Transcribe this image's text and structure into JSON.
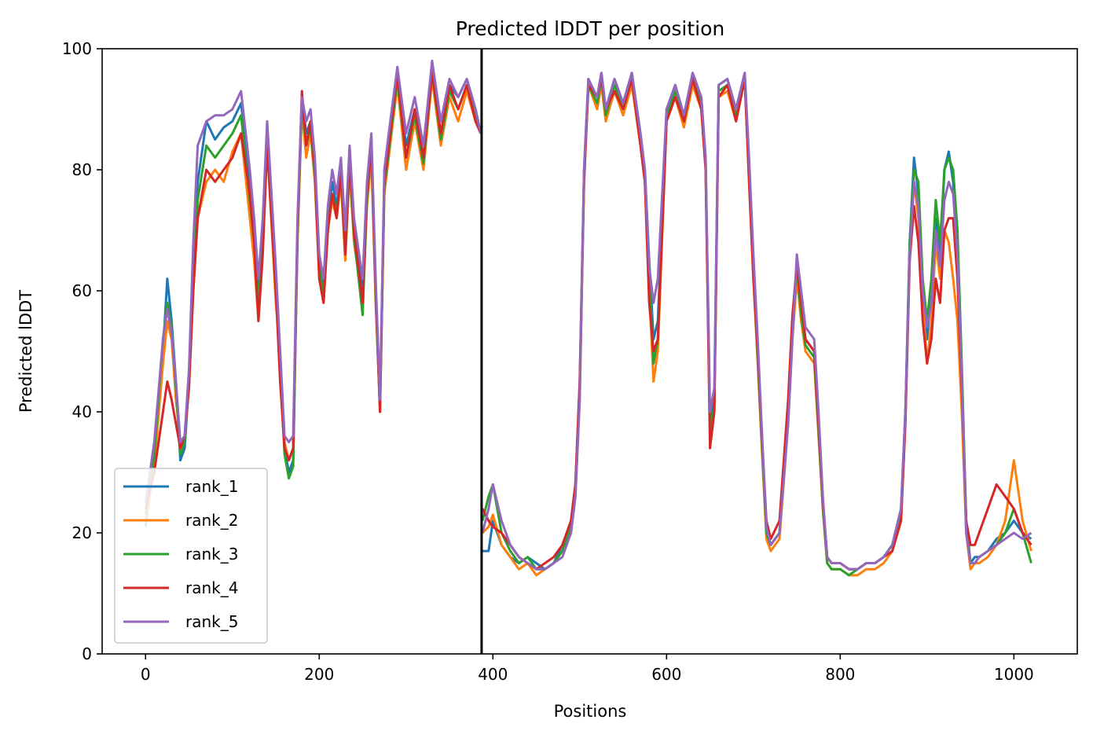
{
  "chart_data": {
    "type": "line",
    "title": "Predicted lDDT per position",
    "xlabel": "Positions",
    "ylabel": "Predicted lDDT",
    "xlim": [
      -50,
      1073
    ],
    "ylim": [
      0,
      100
    ],
    "xticks": [
      0,
      200,
      400,
      600,
      800,
      1000
    ],
    "yticks": [
      0,
      20,
      40,
      60,
      80,
      100
    ],
    "grid": false,
    "legend_position": "lower-left",
    "chain_boundary_x": 387,
    "colors": {
      "rank_1": "#1f77b4",
      "rank_2": "#ff7f0e",
      "rank_3": "#2ca02c",
      "rank_4": "#d62728",
      "rank_5": "#9467bd",
      "boundary": "#000000"
    },
    "x": [
      0,
      10,
      20,
      25,
      30,
      35,
      40,
      45,
      50,
      55,
      60,
      70,
      80,
      90,
      100,
      110,
      120,
      125,
      130,
      135,
      140,
      150,
      155,
      160,
      165,
      170,
      175,
      180,
      185,
      190,
      195,
      200,
      205,
      210,
      215,
      220,
      225,
      230,
      235,
      240,
      250,
      255,
      260,
      265,
      270,
      275,
      280,
      290,
      300,
      310,
      320,
      330,
      340,
      350,
      360,
      370,
      380,
      386,
      388,
      395,
      400,
      410,
      420,
      430,
      440,
      450,
      460,
      470,
      480,
      490,
      495,
      500,
      505,
      510,
      520,
      525,
      530,
      540,
      550,
      560,
      570,
      575,
      580,
      585,
      590,
      600,
      610,
      620,
      630,
      640,
      645,
      650,
      655,
      660,
      670,
      680,
      690,
      695,
      700,
      705,
      710,
      715,
      720,
      730,
      740,
      745,
      750,
      755,
      760,
      770,
      775,
      780,
      785,
      790,
      800,
      810,
      820,
      830,
      840,
      850,
      860,
      870,
      875,
      880,
      885,
      890,
      895,
      900,
      905,
      910,
      915,
      920,
      925,
      930,
      935,
      940,
      945,
      950,
      955,
      960,
      970,
      980,
      990,
      1000,
      1010,
      1020
    ],
    "series": [
      {
        "name": "rank_1",
        "values": [
          21,
          32,
          50,
          62,
          55,
          45,
          32,
          34,
          45,
          65,
          78,
          88,
          85,
          87,
          88,
          91,
          78,
          72,
          60,
          70,
          86,
          62,
          48,
          34,
          30,
          32,
          70,
          92,
          86,
          88,
          80,
          65,
          60,
          72,
          78,
          74,
          80,
          68,
          82,
          70,
          60,
          76,
          85,
          60,
          42,
          78,
          84,
          96,
          84,
          90,
          82,
          97,
          86,
          94,
          92,
          95,
          90,
          86,
          17,
          17,
          22,
          18,
          16,
          15,
          16,
          15,
          14,
          15,
          18,
          22,
          28,
          45,
          80,
          95,
          92,
          96,
          90,
          95,
          91,
          96,
          86,
          80,
          65,
          52,
          55,
          90,
          94,
          89,
          96,
          92,
          82,
          38,
          42,
          94,
          95,
          90,
          96,
          80,
          65,
          50,
          35,
          20,
          18,
          20,
          40,
          55,
          65,
          58,
          52,
          50,
          38,
          25,
          16,
          15,
          15,
          14,
          14,
          15,
          15,
          16,
          18,
          24,
          40,
          68,
          82,
          76,
          60,
          52,
          60,
          72,
          65,
          80,
          83,
          78,
          65,
          45,
          22,
          15,
          16,
          16,
          17,
          19,
          20,
          22,
          20,
          19
        ]
      },
      {
        "name": "rank_2",
        "values": [
          22,
          31,
          48,
          55,
          52,
          42,
          35,
          36,
          44,
          60,
          72,
          78,
          80,
          78,
          83,
          86,
          72,
          65,
          55,
          68,
          84,
          58,
          50,
          35,
          32,
          34,
          68,
          90,
          82,
          86,
          78,
          62,
          58,
          70,
          75,
          72,
          78,
          65,
          80,
          68,
          58,
          74,
          82,
          58,
          41,
          76,
          82,
          94,
          80,
          88,
          80,
          95,
          84,
          92,
          88,
          93,
          88,
          86,
          20,
          21,
          23,
          18,
          16,
          14,
          15,
          13,
          14,
          15,
          17,
          20,
          26,
          42,
          78,
          94,
          90,
          94,
          88,
          93,
          89,
          94,
          84,
          78,
          60,
          45,
          50,
          88,
          92,
          87,
          94,
          90,
          80,
          36,
          40,
          92,
          93,
          88,
          95,
          78,
          62,
          48,
          33,
          19,
          17,
          19,
          38,
          52,
          62,
          55,
          50,
          48,
          36,
          24,
          15,
          14,
          14,
          13,
          13,
          14,
          14,
          15,
          17,
          22,
          38,
          65,
          78,
          72,
          58,
          48,
          55,
          68,
          62,
          70,
          68,
          62,
          55,
          40,
          20,
          14,
          15,
          15,
          16,
          18,
          22,
          32,
          22,
          17
        ]
      },
      {
        "name": "rank_3",
        "values": [
          23,
          33,
          52,
          58,
          54,
          44,
          33,
          35,
          46,
          63,
          75,
          84,
          82,
          84,
          86,
          89,
          75,
          68,
          58,
          69,
          85,
          60,
          47,
          33,
          29,
          31,
          69,
          91,
          84,
          87,
          79,
          64,
          59,
          71,
          76,
          73,
          79,
          66,
          81,
          69,
          56,
          75,
          84,
          59,
          40,
          77,
          83,
          95,
          82,
          89,
          81,
          96,
          85,
          93,
          90,
          94,
          89,
          86,
          22,
          26,
          28,
          20,
          17,
          15,
          16,
          14,
          14,
          15,
          17,
          21,
          27,
          44,
          79,
          94,
          91,
          95,
          89,
          94,
          90,
          95,
          85,
          79,
          62,
          48,
          52,
          89,
          93,
          88,
          95,
          91,
          81,
          37,
          41,
          93,
          94,
          89,
          95,
          79,
          63,
          49,
          34,
          20,
          18,
          20,
          39,
          54,
          64,
          56,
          51,
          49,
          37,
          24,
          15,
          14,
          14,
          13,
          14,
          15,
          15,
          16,
          18,
          23,
          39,
          68,
          80,
          78,
          62,
          55,
          62,
          75,
          68,
          80,
          82,
          80,
          70,
          48,
          22,
          15,
          15,
          16,
          17,
          18,
          20,
          24,
          20,
          15
        ]
      },
      {
        "name": "rank_4",
        "values": [
          24,
          30,
          40,
          45,
          42,
          38,
          34,
          36,
          44,
          60,
          72,
          80,
          78,
          80,
          82,
          86,
          76,
          68,
          55,
          66,
          84,
          60,
          45,
          34,
          32,
          34,
          70,
          93,
          84,
          88,
          80,
          62,
          58,
          70,
          76,
          72,
          80,
          66,
          82,
          70,
          58,
          76,
          84,
          60,
          40,
          78,
          84,
          96,
          82,
          90,
          82,
          96,
          86,
          94,
          90,
          94,
          88,
          86,
          24,
          22,
          21,
          20,
          18,
          16,
          15,
          14,
          15,
          16,
          18,
          22,
          28,
          45,
          78,
          94,
          92,
          95,
          90,
          93,
          90,
          95,
          84,
          78,
          58,
          50,
          52,
          88,
          92,
          88,
          95,
          90,
          80,
          34,
          40,
          92,
          94,
          88,
          95,
          78,
          62,
          50,
          35,
          22,
          19,
          22,
          42,
          56,
          64,
          58,
          52,
          50,
          38,
          25,
          16,
          15,
          15,
          14,
          14,
          15,
          15,
          16,
          17,
          22,
          38,
          65,
          74,
          68,
          55,
          48,
          52,
          62,
          58,
          70,
          72,
          72,
          62,
          44,
          22,
          18,
          18,
          20,
          24,
          28,
          26,
          24,
          20,
          18
        ]
      },
      {
        "name": "rank_5",
        "values": [
          25,
          35,
          52,
          57,
          53,
          45,
          35,
          36,
          47,
          68,
          84,
          88,
          89,
          89,
          90,
          93,
          80,
          72,
          62,
          72,
          88,
          64,
          50,
          36,
          35,
          36,
          72,
          92,
          88,
          90,
          82,
          66,
          62,
          74,
          80,
          76,
          82,
          70,
          84,
          72,
          62,
          78,
          86,
          62,
          42,
          80,
          86,
          97,
          86,
          92,
          84,
          98,
          88,
          95,
          92,
          95,
          90,
          86,
          20,
          24,
          28,
          22,
          18,
          16,
          15,
          14,
          14,
          15,
          16,
          20,
          26,
          42,
          80,
          95,
          92,
          96,
          90,
          95,
          91,
          96,
          86,
          80,
          64,
          58,
          62,
          90,
          94,
          89,
          96,
          92,
          82,
          40,
          44,
          94,
          95,
          90,
          96,
          82,
          66,
          52,
          36,
          21,
          18,
          20,
          38,
          52,
          66,
          60,
          54,
          52,
          40,
          26,
          16,
          15,
          15,
          14,
          14,
          15,
          15,
          16,
          18,
          24,
          40,
          66,
          78,
          74,
          60,
          54,
          58,
          70,
          64,
          75,
          78,
          76,
          66,
          46,
          20,
          15,
          15,
          16,
          17,
          18,
          19,
          20,
          19,
          20
        ]
      }
    ]
  }
}
